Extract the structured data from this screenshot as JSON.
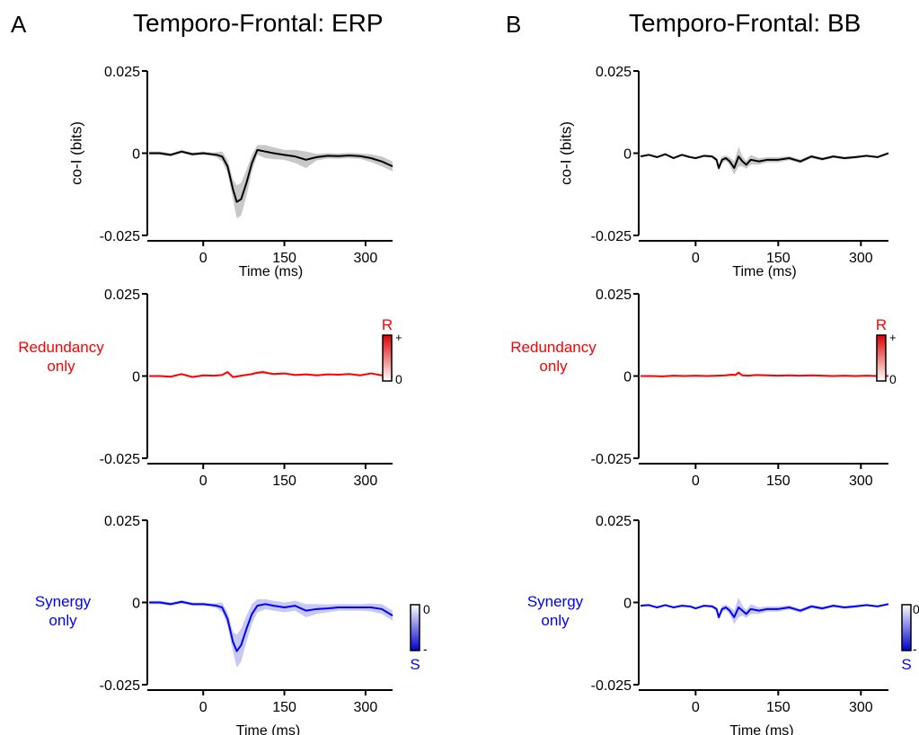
{
  "panels": [
    {
      "letter": "A",
      "title": "Temporo-Frontal: ERP"
    },
    {
      "letter": "B",
      "title": "Temporo-Frontal: BB"
    }
  ],
  "rows": [
    {
      "label_lines": [
        "co-I (bits)"
      ],
      "color": "#000000"
    },
    {
      "label_lines": [
        "Redundancy",
        "only"
      ],
      "color": "#ff0000"
    },
    {
      "label_lines": [
        "Synergy",
        "only"
      ],
      "color": "#0000ff"
    }
  ],
  "colorbars": {
    "redundancy": {
      "letter": "R",
      "top": "+",
      "bottom": "0",
      "color": "#ff0000"
    },
    "synergy": {
      "letter": "S",
      "top": "0",
      "bottom": "-",
      "color": "#0000ff"
    }
  },
  "chart_data": [
    {
      "type": "line",
      "panel": "A",
      "row": "co-I",
      "xlabel": "Time (ms)",
      "ylabel": "co-I (bits)",
      "xlim": [
        -100,
        350
      ],
      "ylim": [
        -0.025,
        0.025
      ],
      "xticks": [
        0,
        150,
        300
      ],
      "yticks": [
        -0.025,
        0,
        0.025
      ],
      "tick_labels_y": [
        "-0.025",
        "0",
        "0.025"
      ],
      "series": [
        {
          "color": "#000000",
          "band_color": "#c8c8c8",
          "x": [
            -100,
            -80,
            -60,
            -40,
            -20,
            0,
            15,
            25,
            35,
            45,
            55,
            62,
            70,
            80,
            90,
            100,
            115,
            130,
            150,
            170,
            190,
            210,
            230,
            250,
            270,
            290,
            310,
            330,
            350
          ],
          "y": [
            0,
            0,
            -0.0005,
            0.0005,
            -0.0003,
            0,
            -0.0003,
            -0.0005,
            -0.001,
            -0.004,
            -0.011,
            -0.0148,
            -0.014,
            -0.009,
            -0.003,
            0.001,
            0.0005,
            0,
            -0.0005,
            -0.001,
            -0.002,
            -0.0012,
            -0.0008,
            -0.0009,
            -0.0007,
            -0.0009,
            -0.0015,
            -0.0025,
            -0.004
          ],
          "band": [
            0.0005,
            0.0005,
            0.0005,
            0.0005,
            0.0005,
            0.0005,
            0.0005,
            0.0008,
            0.0015,
            0.002,
            0.003,
            0.005,
            0.005,
            0.004,
            0.0025,
            0.0015,
            0.002,
            0.0018,
            0.0015,
            0.002,
            0.0025,
            0.001,
            0.0008,
            0.0008,
            0.0008,
            0.0008,
            0.0012,
            0.0015,
            0.0015
          ]
        }
      ]
    },
    {
      "type": "line",
      "panel": "A",
      "row": "redundancy",
      "xlabel": "",
      "ylabel": "",
      "xlim": [
        -100,
        350
      ],
      "ylim": [
        -0.025,
        0.025
      ],
      "xticks": [
        0,
        150,
        300
      ],
      "yticks": [
        -0.025,
        0,
        0.025
      ],
      "tick_labels_y": [
        "-0.025",
        "0",
        "0.025"
      ],
      "series": [
        {
          "color": "#ff0000",
          "band_color": "#ffbcbc",
          "x": [
            -100,
            -80,
            -60,
            -40,
            -20,
            0,
            20,
            35,
            45,
            55,
            70,
            90,
            100,
            110,
            130,
            150,
            170,
            190,
            210,
            230,
            250,
            270,
            290,
            310,
            330,
            350
          ],
          "y": [
            0,
            0,
            -0.0002,
            0.0006,
            -0.0003,
            0.0002,
            0.0001,
            0.0003,
            0.0012,
            -0.0003,
            0.0001,
            0.0006,
            0.001,
            0.0012,
            0.0006,
            0.0008,
            0.0003,
            0.0005,
            0.0002,
            0.0005,
            0.0004,
            0.0006,
            0.0002,
            0.0008,
            0.0002,
            0
          ],
          "band": [
            0.0001,
            0.0001,
            0.0001,
            0.0002,
            0.0002,
            0.0002,
            0.0002,
            0.0002,
            0.0004,
            0.0002,
            0.0002,
            0.0003,
            0.0004,
            0.0004,
            0.0003,
            0.0003,
            0.0002,
            0.0002,
            0.0002,
            0.0002,
            0.0002,
            0.0002,
            0.0002,
            0.0002,
            0.0002,
            0.0001
          ]
        }
      ]
    },
    {
      "type": "line",
      "panel": "A",
      "row": "synergy",
      "xlabel": "Time (ms)",
      "ylabel": "",
      "xlim": [
        -100,
        350
      ],
      "ylim": [
        -0.025,
        0.025
      ],
      "xticks": [
        0,
        150,
        300
      ],
      "yticks": [
        -0.025,
        0,
        0.025
      ],
      "tick_labels_y": [
        "-0.025",
        "0",
        "0.025"
      ],
      "series": [
        {
          "color": "#0000ff",
          "band_color": "#c8c8f5",
          "x": [
            -100,
            -80,
            -60,
            -40,
            -20,
            0,
            15,
            25,
            35,
            45,
            55,
            62,
            70,
            80,
            90,
            100,
            115,
            130,
            150,
            170,
            190,
            210,
            230,
            250,
            270,
            290,
            310,
            330,
            350
          ],
          "y": [
            0,
            0,
            -0.0005,
            0.0002,
            -0.0005,
            -0.0005,
            -0.0008,
            -0.001,
            -0.0015,
            -0.005,
            -0.012,
            -0.0148,
            -0.013,
            -0.008,
            -0.0035,
            -0.001,
            -0.0005,
            -0.001,
            -0.0015,
            -0.001,
            -0.0025,
            -0.002,
            -0.0018,
            -0.0015,
            -0.0015,
            -0.0015,
            -0.0015,
            -0.002,
            -0.004
          ],
          "band": [
            0.0005,
            0.0005,
            0.0005,
            0.0005,
            0.0005,
            0.0005,
            0.0005,
            0.0008,
            0.0015,
            0.002,
            0.003,
            0.005,
            0.005,
            0.004,
            0.003,
            0.002,
            0.0015,
            0.0015,
            0.0015,
            0.0015,
            0.002,
            0.0015,
            0.0012,
            0.001,
            0.001,
            0.001,
            0.0012,
            0.0015,
            0.0015
          ]
        }
      ]
    },
    {
      "type": "line",
      "panel": "B",
      "row": "co-I",
      "xlabel": "Time (ms)",
      "ylabel": "co-I (bits)",
      "xlim": [
        -100,
        350
      ],
      "ylim": [
        -0.025,
        0.025
      ],
      "xticks": [
        0,
        150,
        300
      ],
      "yticks": [
        -0.025,
        0,
        0.025
      ],
      "tick_labels_y": [
        "-0.025",
        "0",
        "0.025"
      ],
      "series": [
        {
          "color": "#000000",
          "band_color": "#c8c8c8",
          "x": [
            -100,
            -85,
            -70,
            -55,
            -40,
            -25,
            -10,
            0,
            15,
            30,
            38,
            42,
            48,
            55,
            62,
            70,
            78,
            85,
            92,
            100,
            115,
            130,
            150,
            170,
            190,
            210,
            230,
            250,
            270,
            290,
            310,
            330,
            350
          ],
          "y": [
            -0.001,
            -0.0005,
            -0.0012,
            -0.0003,
            -0.0015,
            -0.0005,
            -0.0012,
            -0.0015,
            -0.0008,
            -0.001,
            -0.002,
            -0.0045,
            -0.002,
            -0.0015,
            -0.0025,
            -0.0045,
            -0.001,
            -0.0025,
            -0.0035,
            -0.002,
            -0.0025,
            -0.002,
            -0.002,
            -0.0015,
            -0.0025,
            -0.001,
            -0.0018,
            -0.001,
            -0.0015,
            -0.0012,
            -0.0008,
            -0.0012,
            0
          ],
          "band": [
            0.0003,
            0.0003,
            0.0003,
            0.0003,
            0.0003,
            0.0003,
            0.0003,
            0.0003,
            0.0003,
            0.0004,
            0.0006,
            0.001,
            0.001,
            0.0008,
            0.0012,
            0.002,
            0.003,
            0.0015,
            0.0012,
            0.0015,
            0.001,
            0.0008,
            0.0008,
            0.0006,
            0.0006,
            0.0005,
            0.0005,
            0.0004,
            0.0004,
            0.0004,
            0.0003,
            0.0003,
            0.0003
          ]
        }
      ]
    },
    {
      "type": "line",
      "panel": "B",
      "row": "redundancy",
      "xlabel": "",
      "ylabel": "",
      "xlim": [
        -100,
        350
      ],
      "ylim": [
        -0.025,
        0.025
      ],
      "xticks": [
        0,
        150,
        300
      ],
      "yticks": [
        -0.025,
        0,
        0.025
      ],
      "tick_labels_y": [
        "-0.025",
        "0",
        "0.025"
      ],
      "series": [
        {
          "color": "#ff0000",
          "band_color": "#ffbcbc",
          "x": [
            -100,
            -80,
            -60,
            -40,
            -20,
            0,
            20,
            40,
            55,
            65,
            72,
            78,
            85,
            95,
            110,
            130,
            150,
            170,
            190,
            210,
            230,
            250,
            270,
            290,
            310,
            330,
            350
          ],
          "y": [
            0,
            0,
            -0.0001,
            0.0001,
            0,
            0.0001,
            0,
            0.0001,
            0.0002,
            0.0004,
            0.0003,
            0.001,
            0.0002,
            0.0001,
            0.0003,
            0.0002,
            0.0001,
            0.0002,
            0.0001,
            0.0002,
            0.0001,
            0,
            0.0001,
            0,
            0.0001,
            0,
            0
          ],
          "band": [
            0.0001,
            0.0001,
            0.0001,
            0.0001,
            0.0001,
            0.0001,
            0.0001,
            0.0001,
            0.0002,
            0.0003,
            0.0003,
            0.0005,
            0.0002,
            0.0001,
            0.0002,
            0.0001,
            0.0001,
            0.0001,
            0.0001,
            0.0001,
            0.0001,
            0.0001,
            0.0001,
            0.0001,
            0.0001,
            0.0001,
            0.0001
          ]
        }
      ]
    },
    {
      "type": "line",
      "panel": "B",
      "row": "synergy",
      "xlabel": "Time (ms)",
      "ylabel": "",
      "xlim": [
        -100,
        350
      ],
      "ylim": [
        -0.025,
        0.025
      ],
      "xticks": [
        0,
        150,
        300
      ],
      "yticks": [
        -0.025,
        0,
        0.025
      ],
      "tick_labels_y": [
        "-0.025",
        "0",
        "0.025"
      ],
      "series": [
        {
          "color": "#0000ff",
          "band_color": "#c8c8f5",
          "x": [
            -100,
            -85,
            -70,
            -55,
            -40,
            -25,
            -10,
            0,
            15,
            30,
            38,
            42,
            48,
            55,
            62,
            70,
            78,
            85,
            92,
            100,
            115,
            130,
            150,
            170,
            190,
            210,
            230,
            250,
            270,
            290,
            310,
            330,
            350
          ],
          "y": [
            -0.001,
            -0.0008,
            -0.0015,
            -0.0008,
            -0.0015,
            -0.001,
            -0.0012,
            -0.0018,
            -0.001,
            -0.0012,
            -0.002,
            -0.0045,
            -0.002,
            -0.0015,
            -0.0025,
            -0.0045,
            -0.0015,
            -0.0025,
            -0.0035,
            -0.002,
            -0.0025,
            -0.002,
            -0.002,
            -0.0015,
            -0.0025,
            -0.0012,
            -0.0018,
            -0.001,
            -0.0015,
            -0.0012,
            -0.0008,
            -0.0012,
            -0.0005
          ],
          "band": [
            0.0003,
            0.0003,
            0.0003,
            0.0003,
            0.0003,
            0.0003,
            0.0003,
            0.0003,
            0.0003,
            0.0004,
            0.0006,
            0.001,
            0.001,
            0.0008,
            0.0012,
            0.002,
            0.003,
            0.0015,
            0.0012,
            0.0015,
            0.001,
            0.0008,
            0.0008,
            0.0006,
            0.0006,
            0.0005,
            0.0005,
            0.0004,
            0.0004,
            0.0004,
            0.0003,
            0.0003,
            0.0003
          ]
        }
      ]
    }
  ]
}
